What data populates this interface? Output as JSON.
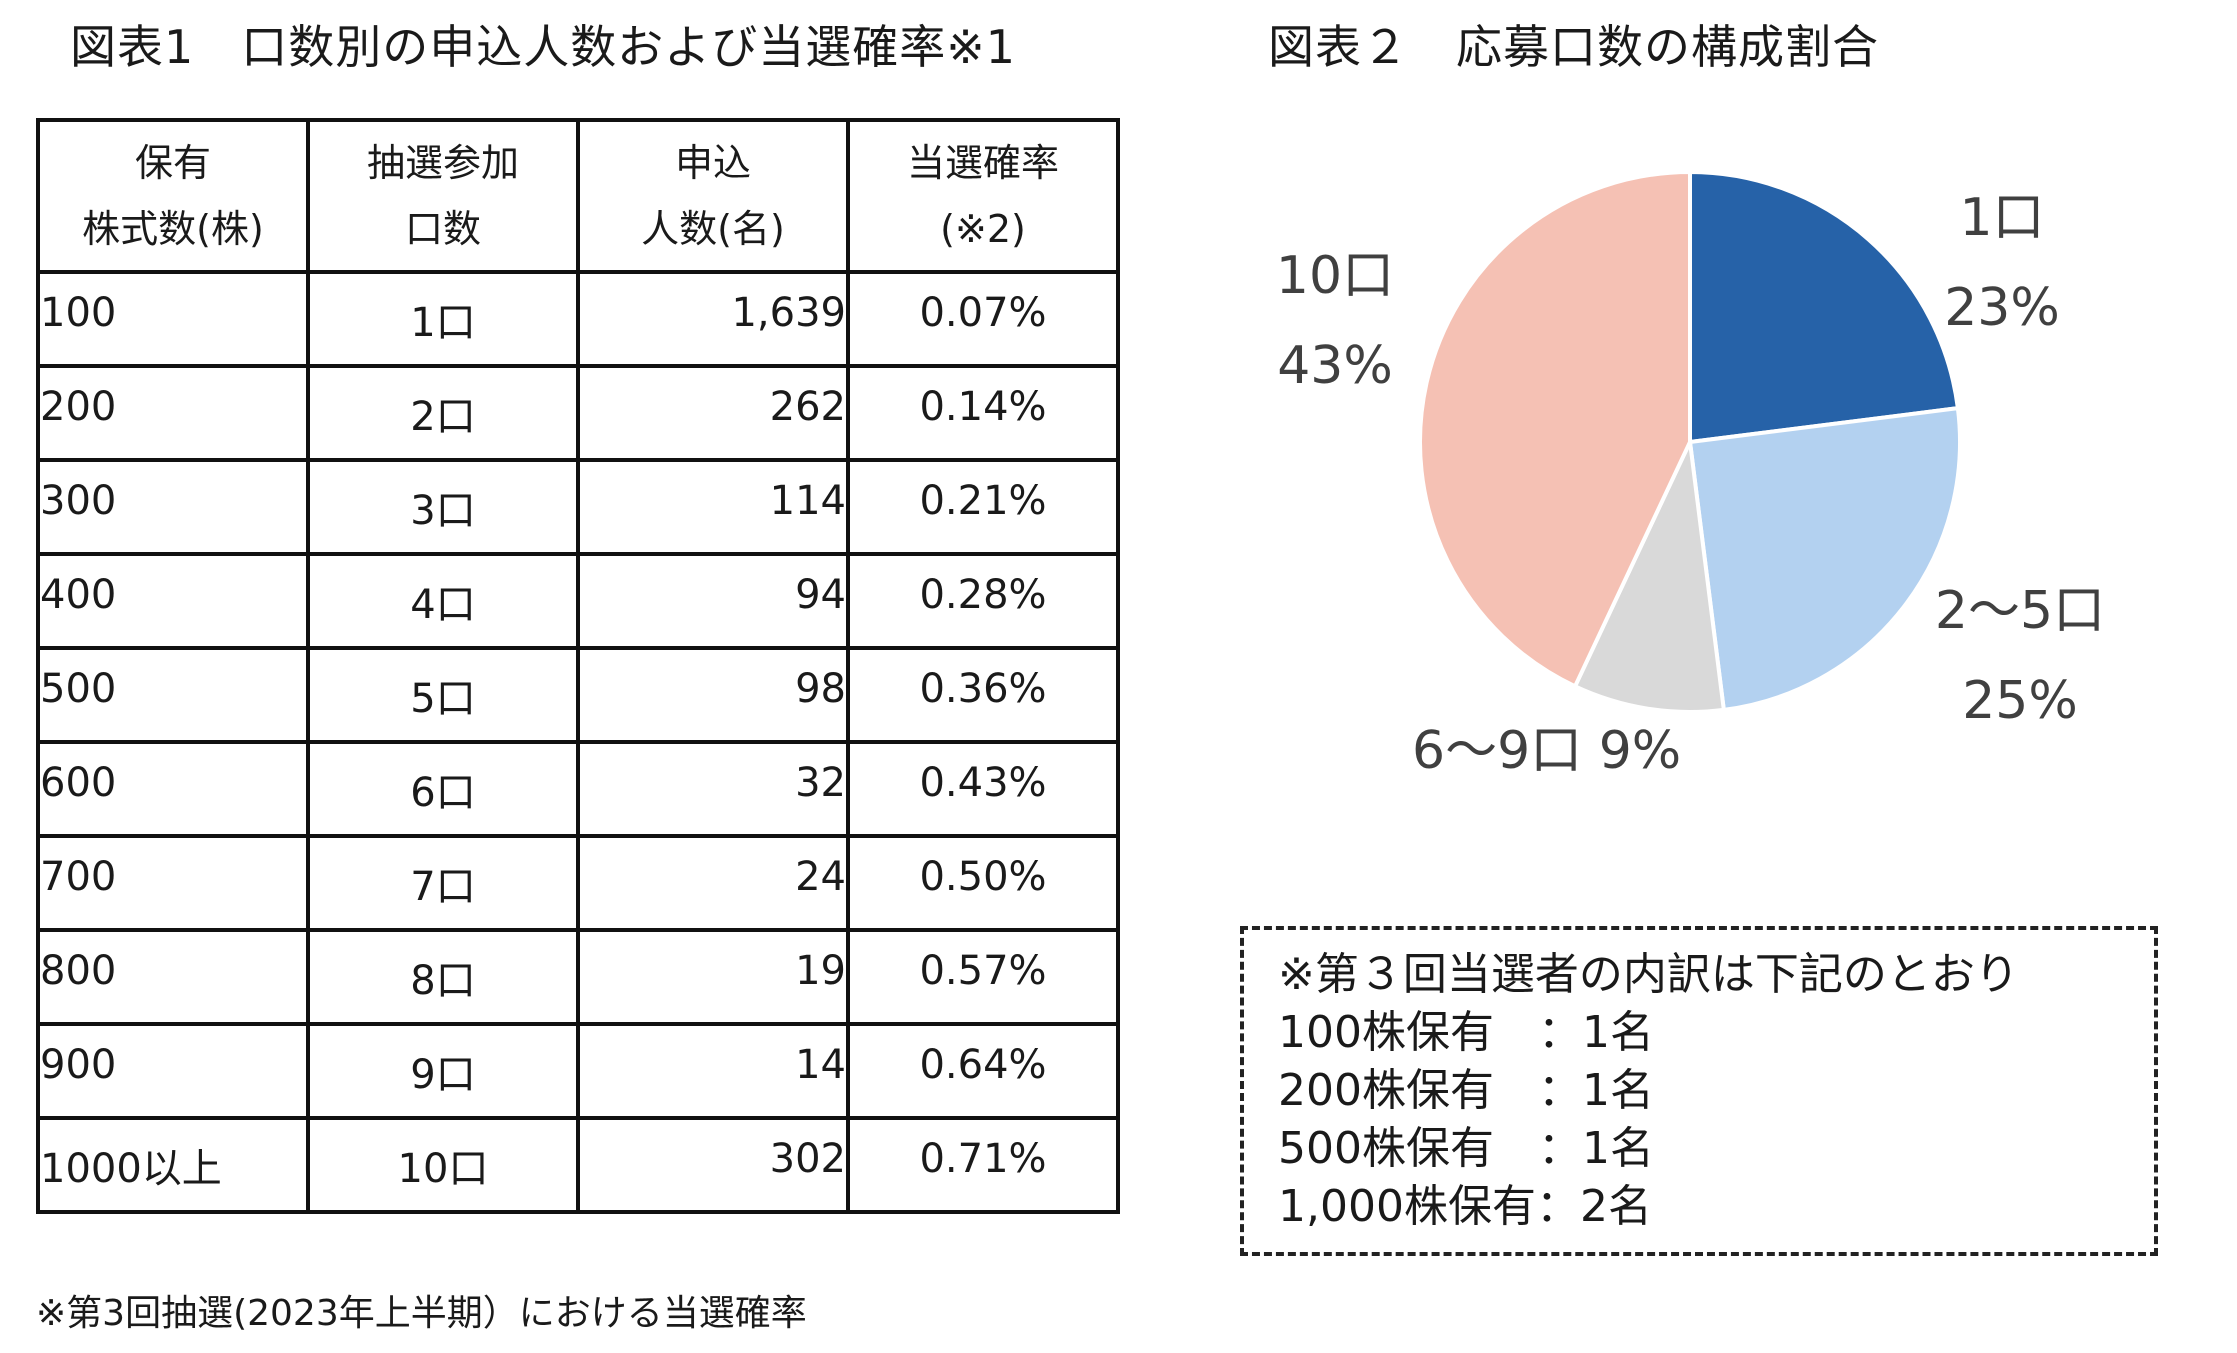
{
  "figure1": {
    "title": "図表1　口数別の申込人数および当選確率※1",
    "headers": [
      [
        "保有",
        "株式数(株)"
      ],
      [
        "抽選参加",
        "口数"
      ],
      [
        "申込",
        "人数(名)"
      ],
      [
        "当選確率",
        "(※2)"
      ]
    ],
    "rows": [
      [
        "100",
        "1口",
        "1,639",
        "0.07%"
      ],
      [
        "200",
        "2口",
        "262",
        "0.14%"
      ],
      [
        "300",
        "3口",
        "114",
        "0.21%"
      ],
      [
        "400",
        "4口",
        "94",
        "0.28%"
      ],
      [
        "500",
        "5口",
        "98",
        "0.36%"
      ],
      [
        "600",
        "6口",
        "32",
        "0.43%"
      ],
      [
        "700",
        "7口",
        "24",
        "0.50%"
      ],
      [
        "800",
        "8口",
        "19",
        "0.57%"
      ],
      [
        "900",
        "9口",
        "14",
        "0.64%"
      ],
      [
        "1000以上",
        "10口",
        "302",
        "0.71%"
      ]
    ],
    "footnote": "※第3回抽選(2023年上半期）における当選確率"
  },
  "chart_data": {
    "type": "pie",
    "title": "図表２　応募口数の構成割合",
    "slices": [
      {
        "label": "1口",
        "value": 23,
        "pct_label": "23%",
        "color": "#2662a8"
      },
      {
        "label": "2～5口",
        "value": 25,
        "pct_label": "25%",
        "color": "#b3d1f0"
      },
      {
        "label": "6～9口",
        "value": 9,
        "pct_label": "9%",
        "color": "#d9d9d9"
      },
      {
        "label": "10口",
        "value": 43,
        "pct_label": "43%",
        "color": "#f5c1b4"
      }
    ]
  },
  "notes": {
    "lines": [
      "※第３回当選者の内訳は下記のとおり",
      "100株保有　：1名",
      "200株保有　：1名",
      "500株保有　：1名",
      "1,000株保有：2名"
    ]
  }
}
